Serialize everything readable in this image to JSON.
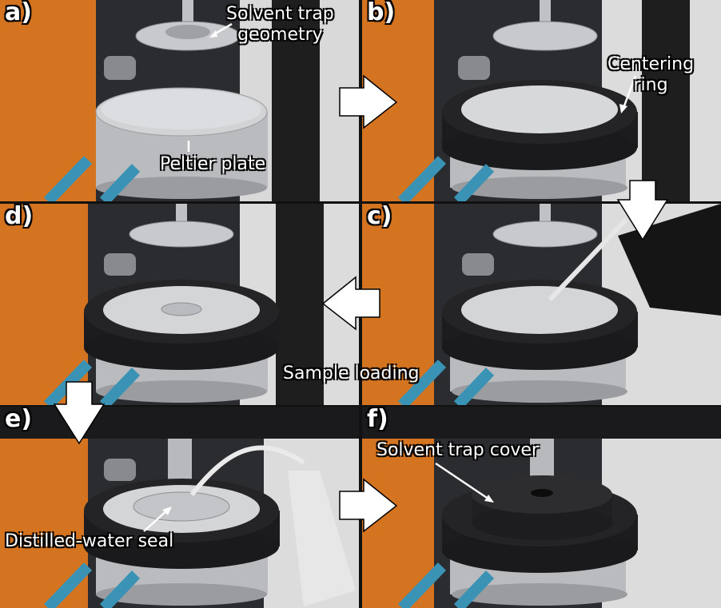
{
  "panels": [
    {
      "id": "a",
      "letter": "a)"
    },
    {
      "id": "b",
      "letter": "b)"
    },
    {
      "id": "c",
      "letter": "c)"
    },
    {
      "id": "d",
      "letter": "d)"
    },
    {
      "id": "e",
      "letter": "e)"
    },
    {
      "id": "f",
      "letter": "f)"
    }
  ],
  "labels": {
    "solvent_trap_geometry_line1": "Solvent trap",
    "solvent_trap_geometry_line2": "geometry",
    "peltier_plate": "Peltier plate",
    "centering_ring_line1": "Centering",
    "centering_ring_line2": "ring",
    "sample_loading": "Sample loading",
    "distilled_water_seal": "Distilled-water seal",
    "solvent_trap_cover": "Solvent trap cover"
  },
  "colors": {
    "arrow_fill": "#ffffff",
    "arrow_stroke": "#000000",
    "orange_housing": "#d9761e",
    "black_ring": "#1c1c1e",
    "steel": "#c4c6c9"
  }
}
